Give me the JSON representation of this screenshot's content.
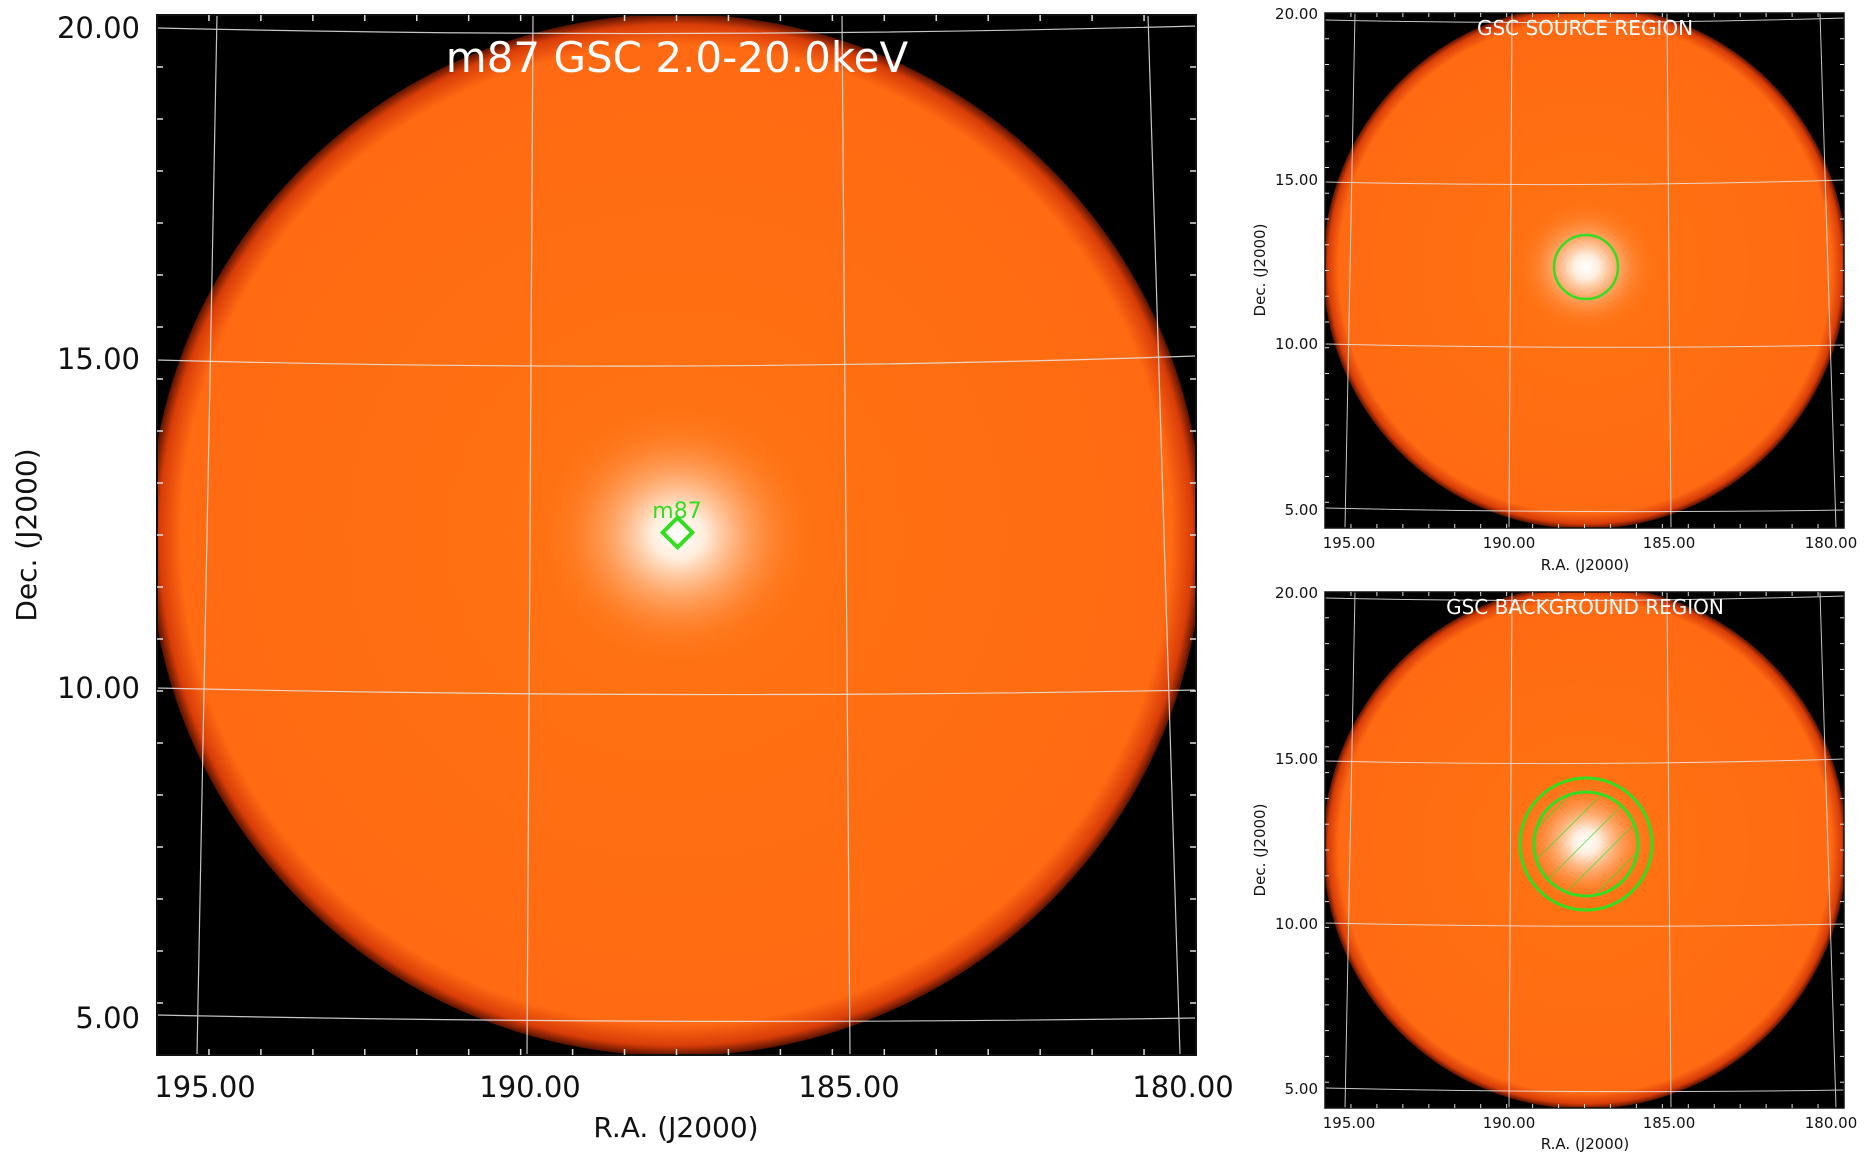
{
  "main_panel": {
    "title": "m87 GSC 2.0-20.0keV",
    "xlabel": "R.A. (J2000)",
    "ylabel": "Dec. (J2000)",
    "x_ticks": [
      "195.00",
      "190.00",
      "185.00",
      "180.00"
    ],
    "y_ticks": [
      "20.00",
      "15.00",
      "10.00",
      "5.00"
    ],
    "source_label": "m87"
  },
  "source_panel": {
    "title": "GSC SOURCE REGION",
    "xlabel": "R.A. (J2000)",
    "ylabel": "Dec. (J2000)",
    "x_ticks": [
      "195.00",
      "190.00",
      "185.00",
      "180.00"
    ],
    "y_ticks": [
      "20.00",
      "15.00",
      "10.00",
      "5.00"
    ]
  },
  "background_panel": {
    "title": "GSC BACKGROUND REGION",
    "xlabel": "R.A. (J2000)",
    "ylabel": "Dec. (J2000)",
    "x_ticks": [
      "195.00",
      "190.00",
      "185.00",
      "180.00"
    ],
    "y_ticks": [
      "20.00",
      "15.00",
      "10.00",
      "5.00"
    ]
  },
  "colors": {
    "sky_background": "#000000",
    "field_orange": "#ff6a12",
    "source_core": "#fff6ec",
    "region_green": "#33dd22",
    "grid_line": "#e8e8e8"
  }
}
